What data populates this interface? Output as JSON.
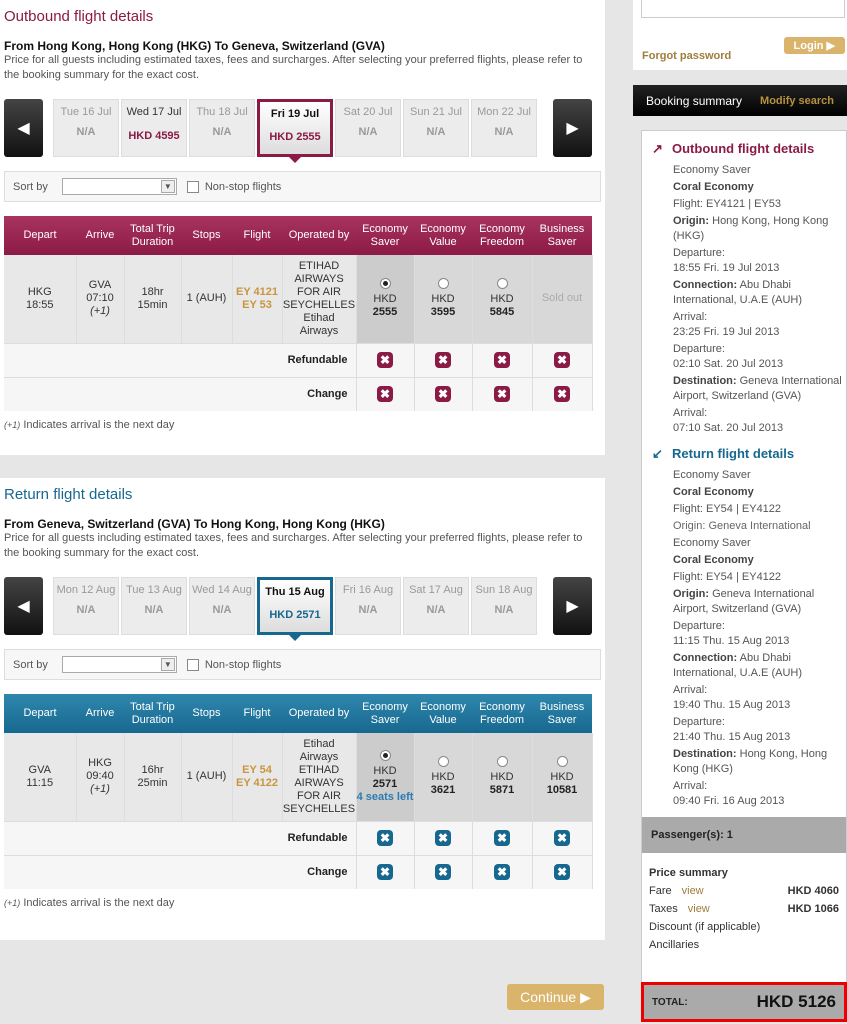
{
  "colors": {
    "outbound": "#8b1a45",
    "outbound_light": "#a8345f",
    "return": "#17688f",
    "return_light": "#2f87ad",
    "gold": "#d9b46a",
    "total_border": "#e00000"
  },
  "sections": [
    {
      "title": "Outbound flight details",
      "route": "From Hong Kong, Hong Kong (HKG) To Geneva, Switzerland (GVA)",
      "desc": "Price for all guests including estimated taxes, fees and surcharges. After selecting your preferred flights, please refer to the booking summary for the exact cost.",
      "dates": [
        {
          "d": "Tue 16 Jul",
          "p": "N/A"
        },
        {
          "d": "Wed 17 Jul",
          "p": "HKD 4595",
          "avail": true
        },
        {
          "d": "Thu 18 Jul",
          "p": "N/A"
        },
        {
          "d": "Fri 19 Jul",
          "p": "HKD 2555",
          "selected": true
        },
        {
          "d": "Sat 20 Jul",
          "p": "N/A"
        },
        {
          "d": "Sun 21 Jul",
          "p": "N/A"
        },
        {
          "d": "Mon 22 Jul",
          "p": "N/A"
        }
      ],
      "flight": {
        "depart": [
          "HKG",
          "18:55"
        ],
        "arrive": [
          "GVA",
          "07:10",
          "(+1)"
        ],
        "duration": [
          "18hr",
          "15min"
        ],
        "stops": "1 (AUH)",
        "flight": [
          "EY 4121",
          "EY 53"
        ],
        "operated": [
          "ETIHAD",
          "AIRWAYS",
          "FOR AIR",
          "SEYCHELLES",
          "Etihad",
          "Airways"
        ],
        "fares": [
          {
            "cur": "HKD",
            "amt": "2555",
            "selected": true
          },
          {
            "cur": "HKD",
            "amt": "3595"
          },
          {
            "cur": "HKD",
            "amt": "5845"
          },
          {
            "sold": "Sold out"
          }
        ]
      }
    },
    {
      "title": "Return flight details",
      "route": "From Geneva, Switzerland (GVA) To Hong Kong, Hong Kong (HKG)",
      "desc": "Price for all guests including estimated taxes, fees and surcharges. After selecting your preferred flights, please refer to the booking summary for the exact cost.",
      "dates": [
        {
          "d": "Mon 12 Aug",
          "p": "N/A"
        },
        {
          "d": "Tue 13 Aug",
          "p": "N/A"
        },
        {
          "d": "Wed 14 Aug",
          "p": "N/A"
        },
        {
          "d": "Thu 15 Aug",
          "p": "HKD 2571",
          "selected": true
        },
        {
          "d": "Fri 16 Aug",
          "p": "N/A"
        },
        {
          "d": "Sat 17 Aug",
          "p": "N/A"
        },
        {
          "d": "Sun 18 Aug",
          "p": "N/A"
        }
      ],
      "flight": {
        "depart": [
          "GVA",
          "11:15"
        ],
        "arrive": [
          "HKG",
          "09:40",
          "(+1)"
        ],
        "duration": [
          "16hr",
          "25min"
        ],
        "stops": "1 (AUH)",
        "flight": [
          "EY 54",
          "EY 4122"
        ],
        "operated": [
          "Etihad",
          "Airways",
          "ETIHAD",
          "AIRWAYS",
          "FOR AIR",
          "SEYCHELLES"
        ],
        "fares": [
          {
            "cur": "HKD",
            "amt": "2571",
            "selected": true,
            "seats": "4 seats left"
          },
          {
            "cur": "HKD",
            "amt": "3621"
          },
          {
            "cur": "HKD",
            "amt": "5871"
          },
          {
            "cur": "HKD",
            "amt": "10581"
          }
        ]
      }
    }
  ],
  "sort": {
    "label": "Sort by",
    "nonstop": "Non-stop flights"
  },
  "table": {
    "headers": [
      "Depart",
      "Arrive",
      "Total Trip Duration",
      "Stops",
      "Flight",
      "Operated by",
      "Economy Saver",
      "Economy Value",
      "Economy Freedom",
      "Business Saver"
    ],
    "refundable": "Refundable",
    "change": "Change",
    "x_icon": "✖"
  },
  "note": {
    "mark": "(+1)",
    "text": " Indicates arrival is the next day"
  },
  "login": {
    "forgot": "Forgot password",
    "button": "Login ▶"
  },
  "summary": {
    "title": "Booking summary",
    "modify": "Modify search",
    "outbound": {
      "heading": "Outbound flight details",
      "fare": "Economy Saver",
      "cabin": "Coral Economy",
      "flight": "Flight: EY4121 | EY53",
      "items": [
        [
          "Origin:",
          "Hong Kong, Hong Kong (HKG)"
        ],
        [
          "",
          "Departure:",
          "18:55 Fri. 19 Jul 2013"
        ],
        [
          "Connection:",
          "Abu Dhabi International, U.A.E (AUH)"
        ],
        [
          "",
          "Arrival:",
          "23:25 Fri. 19 Jul 2013"
        ],
        [
          "",
          "Departure:",
          "02:10 Sat. 20 Jul 2013"
        ],
        [
          "Destination:",
          "Geneva International Airport, Switzerland (GVA)"
        ],
        [
          "",
          "Arrival:",
          "07:10 Sat. 20 Jul 2013"
        ]
      ]
    },
    "return": {
      "heading": "Return flight details",
      "fare": "Economy Saver",
      "cabin": "Coral Economy",
      "flight": "Flight: EY54 | EY4122",
      "overlap": "Origin: Geneva International",
      "items": [
        [
          "Origin:",
          "Geneva International Airport, Switzerland (GVA)"
        ],
        [
          "",
          "Departure:",
          "11:15 Thu. 15 Aug 2013"
        ],
        [
          "Connection:",
          "Abu Dhabi International, U.A.E (AUH)"
        ],
        [
          "",
          "Arrival:",
          "19:40 Thu. 15 Aug 2013"
        ],
        [
          "",
          "Departure:",
          "21:40 Thu. 15 Aug 2013"
        ],
        [
          "Destination:",
          "Hong Kong, Hong Kong (HKG)"
        ],
        [
          "",
          "Arrival:",
          "09:40 Fri. 16 Aug 2013"
        ]
      ]
    },
    "passengers": "Passenger(s): 1",
    "price_title": "Price summary",
    "fare": {
      "label": "Fare",
      "view": "view",
      "amount": "HKD 4060"
    },
    "taxes": {
      "label": "Taxes",
      "view": "view",
      "amount": "HKD 1066"
    },
    "discount": "Discount (if applicable)",
    "ancillaries": "Ancillaries",
    "total_label": "TOTAL:",
    "total": "HKD 5126"
  },
  "continue": "Continue ▶"
}
